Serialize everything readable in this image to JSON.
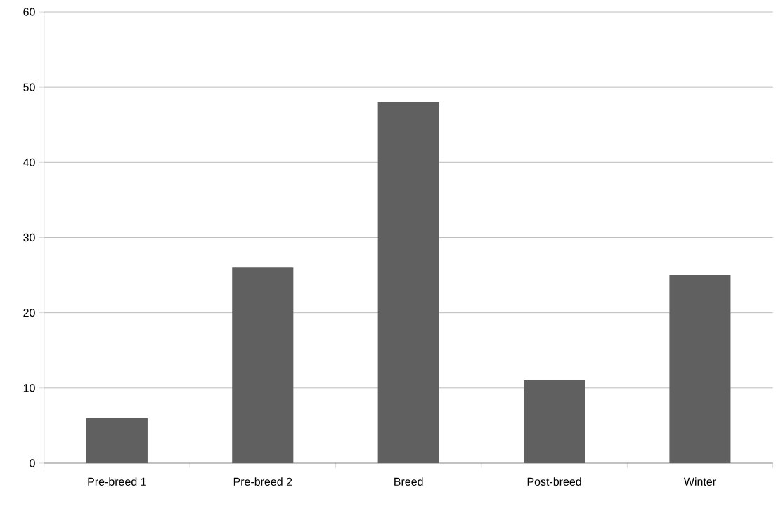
{
  "chart_data": {
    "type": "bar",
    "categories": [
      "Pre-breed 1",
      "Pre-breed 2",
      "Breed",
      "Post-breed",
      "Winter"
    ],
    "values": [
      6,
      26,
      48,
      11,
      25
    ],
    "color": "#606060",
    "ylim": [
      0,
      60
    ],
    "yticks": [
      0,
      10,
      20,
      30,
      40,
      50,
      60
    ],
    "grid": "y"
  }
}
